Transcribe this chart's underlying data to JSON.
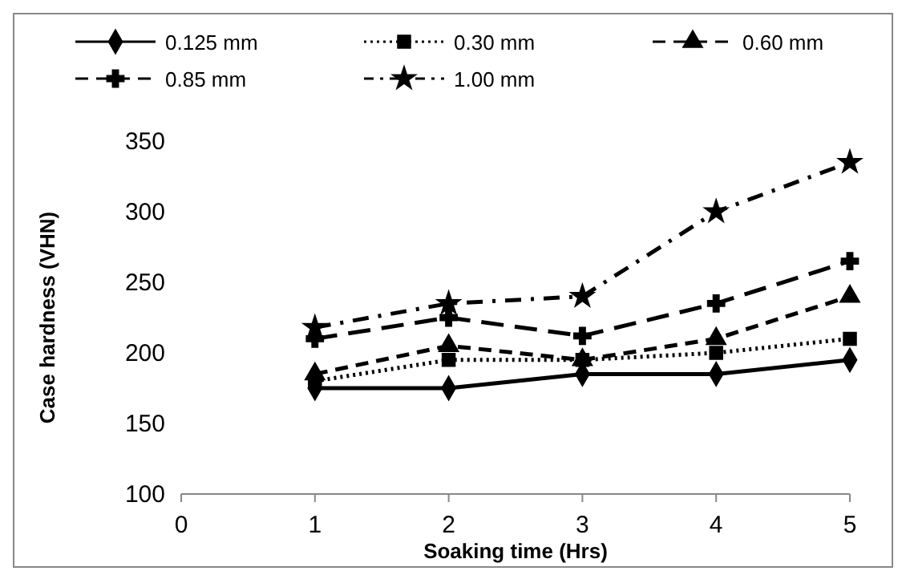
{
  "chart_data": {
    "type": "line",
    "xlabel": "Soaking time (Hrs)",
    "ylabel": "Case hardness (VHN)",
    "x": [
      1,
      2,
      3,
      4,
      5
    ],
    "xlim": [
      0,
      5
    ],
    "xticks": [
      0,
      1,
      2,
      3,
      4,
      5
    ],
    "ylim": [
      100,
      350
    ],
    "yticks": [
      100,
      150,
      200,
      250,
      300,
      350
    ],
    "grid": false,
    "legend": "top",
    "series": [
      {
        "name": "0.125 mm",
        "color": "#000000",
        "values": [
          175,
          175,
          185,
          185,
          195
        ],
        "marker": "diamond",
        "line_style": "solid"
      },
      {
        "name": "0.30 mm",
        "color": "#000000",
        "values": [
          180,
          195,
          195,
          200,
          210
        ],
        "marker": "square",
        "line_style": "dotted"
      },
      {
        "name": "0.60 mm",
        "color": "#000000",
        "values": [
          185,
          205,
          195,
          210,
          240
        ],
        "marker": "triangle",
        "line_style": "dashed"
      },
      {
        "name": "0.85 mm",
        "color": "#000000",
        "values": [
          210,
          225,
          212,
          235,
          265
        ],
        "marker": "cross",
        "line_style": "dashed"
      },
      {
        "name": "1.00 mm",
        "color": "#000000",
        "values": [
          218,
          235,
          240,
          300,
          335
        ],
        "marker": "star",
        "line_style": "dashed"
      }
    ]
  }
}
